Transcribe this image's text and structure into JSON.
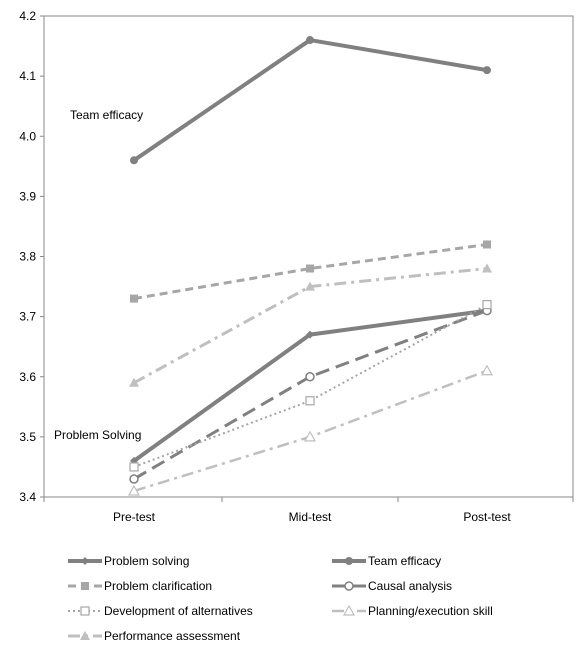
{
  "chart_data": {
    "type": "line",
    "categories": [
      "Pre-test",
      "Mid-test",
      "Post-test"
    ],
    "ylim": [
      3.4,
      4.2
    ],
    "yticks": [
      "3.4",
      "3.5",
      "3.6",
      "3.7",
      "3.8",
      "3.9",
      "4.0",
      "4.1",
      "4.2"
    ],
    "grid": false,
    "legend_position": "bottom",
    "annotations": [
      {
        "text": "Team efficacy",
        "x": "Pre-test",
        "y": 4.03
      },
      {
        "text": "Problem Solving",
        "x": "Pre-test",
        "y": 3.5
      }
    ],
    "series": [
      {
        "name": "Problem solving",
        "values": [
          3.46,
          3.67,
          3.71
        ],
        "color": "#808080",
        "dash": "solid",
        "marker": "diamond",
        "width": 4
      },
      {
        "name": "Team efficacy",
        "values": [
          3.96,
          4.16,
          4.11
        ],
        "color": "#808080",
        "dash": "solid",
        "marker": "circle",
        "width": 4
      },
      {
        "name": "Problem clarification",
        "values": [
          3.73,
          3.78,
          3.82
        ],
        "color": "#a6a6a6",
        "dash": "dash",
        "marker": "square",
        "width": 3
      },
      {
        "name": "Causal analysis",
        "values": [
          3.43,
          3.6,
          3.71
        ],
        "color": "#808080",
        "dash": "longdash",
        "marker": "circle-open",
        "width": 3
      },
      {
        "name": "Development of alternatives",
        "values": [
          3.45,
          3.56,
          3.72
        ],
        "color": "#a6a6a6",
        "dash": "dot",
        "marker": "square-open",
        "width": 2
      },
      {
        "name": "Planning/execution skill",
        "values": [
          3.41,
          3.5,
          3.61
        ],
        "color": "#bfbfbf",
        "dash": "dashdot",
        "marker": "triangle-open",
        "width": 2.5
      },
      {
        "name": "Performance assessment",
        "values": [
          3.59,
          3.75,
          3.78
        ],
        "color": "#bfbfbf",
        "dash": "dashdot",
        "marker": "triangle",
        "width": 3
      }
    ]
  }
}
